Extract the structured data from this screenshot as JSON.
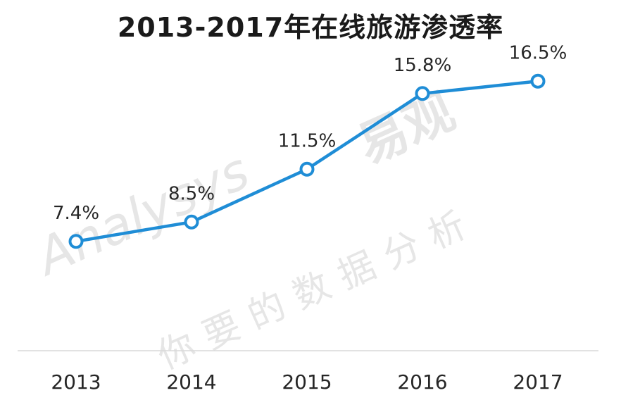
{
  "title": "2013-2017年在线旅游渗透率",
  "watermark": {
    "brand": "Analysys",
    "brand_cn": "易观",
    "tagline": "你要的数据分析"
  },
  "colors": {
    "line": "#1f8dd6",
    "marker_fill": "#ffffff",
    "axis": "#d9d9d9",
    "text": "#262626"
  },
  "chart_data": {
    "type": "line",
    "title": "2013-2017年在线旅游渗透率",
    "categories": [
      "2013",
      "2014",
      "2015",
      "2016",
      "2017"
    ],
    "values": [
      7.4,
      8.5,
      11.5,
      15.8,
      16.5
    ],
    "data_labels": [
      "7.4%",
      "8.5%",
      "11.5%",
      "15.8%",
      "16.5%"
    ],
    "xlabel": "",
    "ylabel": "",
    "ylim": [
      0,
      20
    ],
    "grid": false,
    "legend": "none"
  }
}
